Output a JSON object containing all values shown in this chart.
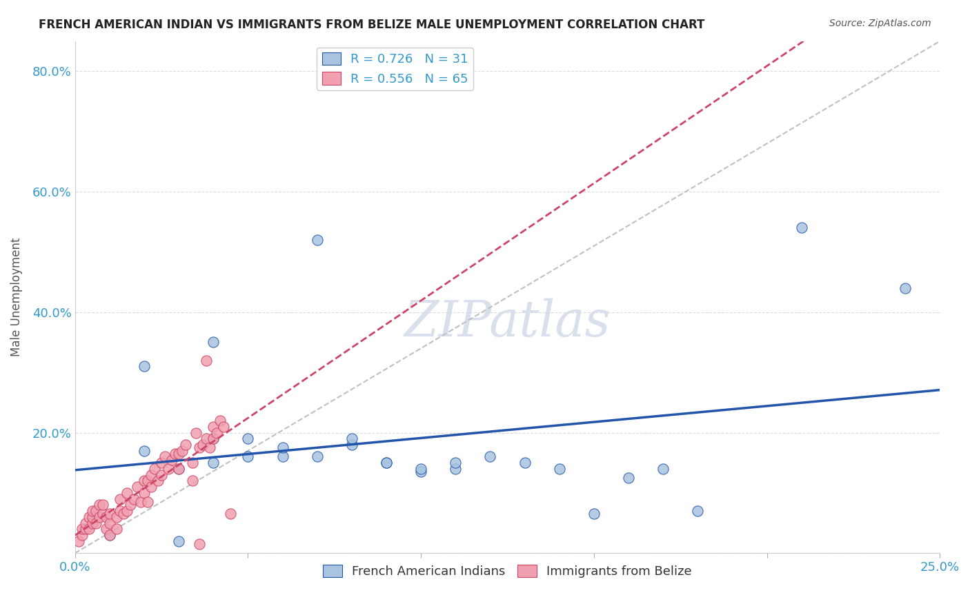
{
  "title": "FRENCH AMERICAN INDIAN VS IMMIGRANTS FROM BELIZE MALE UNEMPLOYMENT CORRELATION CHART",
  "source": "Source: ZipAtlas.com",
  "xlabel": "",
  "ylabel": "Male Unemployment",
  "xlim": [
    0.0,
    0.25
  ],
  "ylim": [
    0.0,
    0.85
  ],
  "xticks": [
    0.0,
    0.05,
    0.1,
    0.15,
    0.2,
    0.25
  ],
  "xticklabels": [
    "0.0%",
    "",
    "",
    "",
    "",
    "25.0%"
  ],
  "yticks": [
    0.0,
    0.2,
    0.4,
    0.6,
    0.8
  ],
  "yticklabels": [
    "",
    "20.0%",
    "40.0%",
    "60.0%",
    "80.0%"
  ],
  "blue_R": 0.726,
  "blue_N": 31,
  "pink_R": 0.556,
  "pink_N": 65,
  "blue_color": "#a8c4e0",
  "blue_line_color": "#2255aa",
  "pink_color": "#f0a0b0",
  "pink_line_color": "#cc4466",
  "dashed_line_color": "#c0c0c0",
  "watermark_color": "#d0d8e8",
  "blue_scatter_x": [
    0.01,
    0.02,
    0.02,
    0.03,
    0.03,
    0.04,
    0.04,
    0.04,
    0.05,
    0.05,
    0.06,
    0.06,
    0.07,
    0.07,
    0.08,
    0.08,
    0.09,
    0.09,
    0.1,
    0.1,
    0.11,
    0.11,
    0.12,
    0.13,
    0.14,
    0.15,
    0.16,
    0.17,
    0.18,
    0.21,
    0.24
  ],
  "blue_scatter_y": [
    0.03,
    0.17,
    0.31,
    0.02,
    0.14,
    0.15,
    0.19,
    0.35,
    0.16,
    0.19,
    0.16,
    0.175,
    0.16,
    0.52,
    0.18,
    0.19,
    0.15,
    0.15,
    0.135,
    0.14,
    0.14,
    0.15,
    0.16,
    0.15,
    0.14,
    0.065,
    0.125,
    0.14,
    0.07,
    0.54,
    0.44
  ],
  "pink_scatter_x": [
    0.001,
    0.002,
    0.002,
    0.003,
    0.003,
    0.004,
    0.004,
    0.005,
    0.005,
    0.005,
    0.006,
    0.006,
    0.007,
    0.007,
    0.008,
    0.008,
    0.009,
    0.009,
    0.01,
    0.01,
    0.01,
    0.012,
    0.012,
    0.013,
    0.013,
    0.014,
    0.015,
    0.015,
    0.016,
    0.017,
    0.018,
    0.019,
    0.02,
    0.02,
    0.021,
    0.021,
    0.022,
    0.022,
    0.023,
    0.024,
    0.025,
    0.025,
    0.026,
    0.027,
    0.028,
    0.029,
    0.03,
    0.03,
    0.031,
    0.032,
    0.034,
    0.034,
    0.035,
    0.036,
    0.036,
    0.037,
    0.038,
    0.038,
    0.039,
    0.04,
    0.04,
    0.041,
    0.042,
    0.043,
    0.045
  ],
  "pink_scatter_y": [
    0.02,
    0.03,
    0.04,
    0.04,
    0.05,
    0.04,
    0.06,
    0.05,
    0.06,
    0.07,
    0.05,
    0.07,
    0.06,
    0.08,
    0.065,
    0.08,
    0.04,
    0.06,
    0.03,
    0.05,
    0.065,
    0.04,
    0.06,
    0.07,
    0.09,
    0.065,
    0.07,
    0.1,
    0.08,
    0.09,
    0.11,
    0.085,
    0.12,
    0.1,
    0.085,
    0.12,
    0.13,
    0.11,
    0.14,
    0.12,
    0.13,
    0.15,
    0.16,
    0.14,
    0.155,
    0.165,
    0.14,
    0.165,
    0.17,
    0.18,
    0.15,
    0.12,
    0.2,
    0.015,
    0.175,
    0.18,
    0.32,
    0.19,
    0.175,
    0.19,
    0.21,
    0.2,
    0.22,
    0.21,
    0.065
  ]
}
